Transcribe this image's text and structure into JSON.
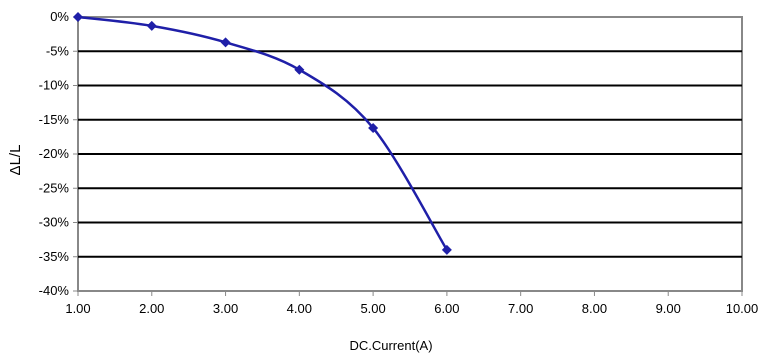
{
  "chart_data": {
    "type": "line",
    "title": "",
    "xlabel": "DC.Current(A)",
    "ylabel": "ΔL/L",
    "xlim": [
      1,
      10
    ],
    "ylim": [
      -40,
      0
    ],
    "x_ticks": [
      1,
      2,
      3,
      4,
      5,
      6,
      7,
      8,
      9,
      10
    ],
    "x_tick_labels": [
      "1.00",
      "2.00",
      "3.00",
      "4.00",
      "5.00",
      "6.00",
      "7.00",
      "8.00",
      "9.00",
      "10.00"
    ],
    "y_ticks": [
      0,
      -5,
      -10,
      -15,
      -20,
      -25,
      -30,
      -35,
      -40
    ],
    "y_tick_labels": [
      "0%",
      "-5%",
      "-10%",
      "-15%",
      "-20%",
      "-25%",
      "-30%",
      "-35%",
      "-40%"
    ],
    "grid": "horizontal",
    "line_color": "#1f1fa8",
    "marker": "diamond",
    "series": [
      {
        "x": [
          1,
          2,
          3,
          4,
          5,
          6
        ],
        "y": [
          0,
          -1.3,
          -3.7,
          -7.7,
          -16.2,
          -34.0
        ]
      }
    ]
  }
}
